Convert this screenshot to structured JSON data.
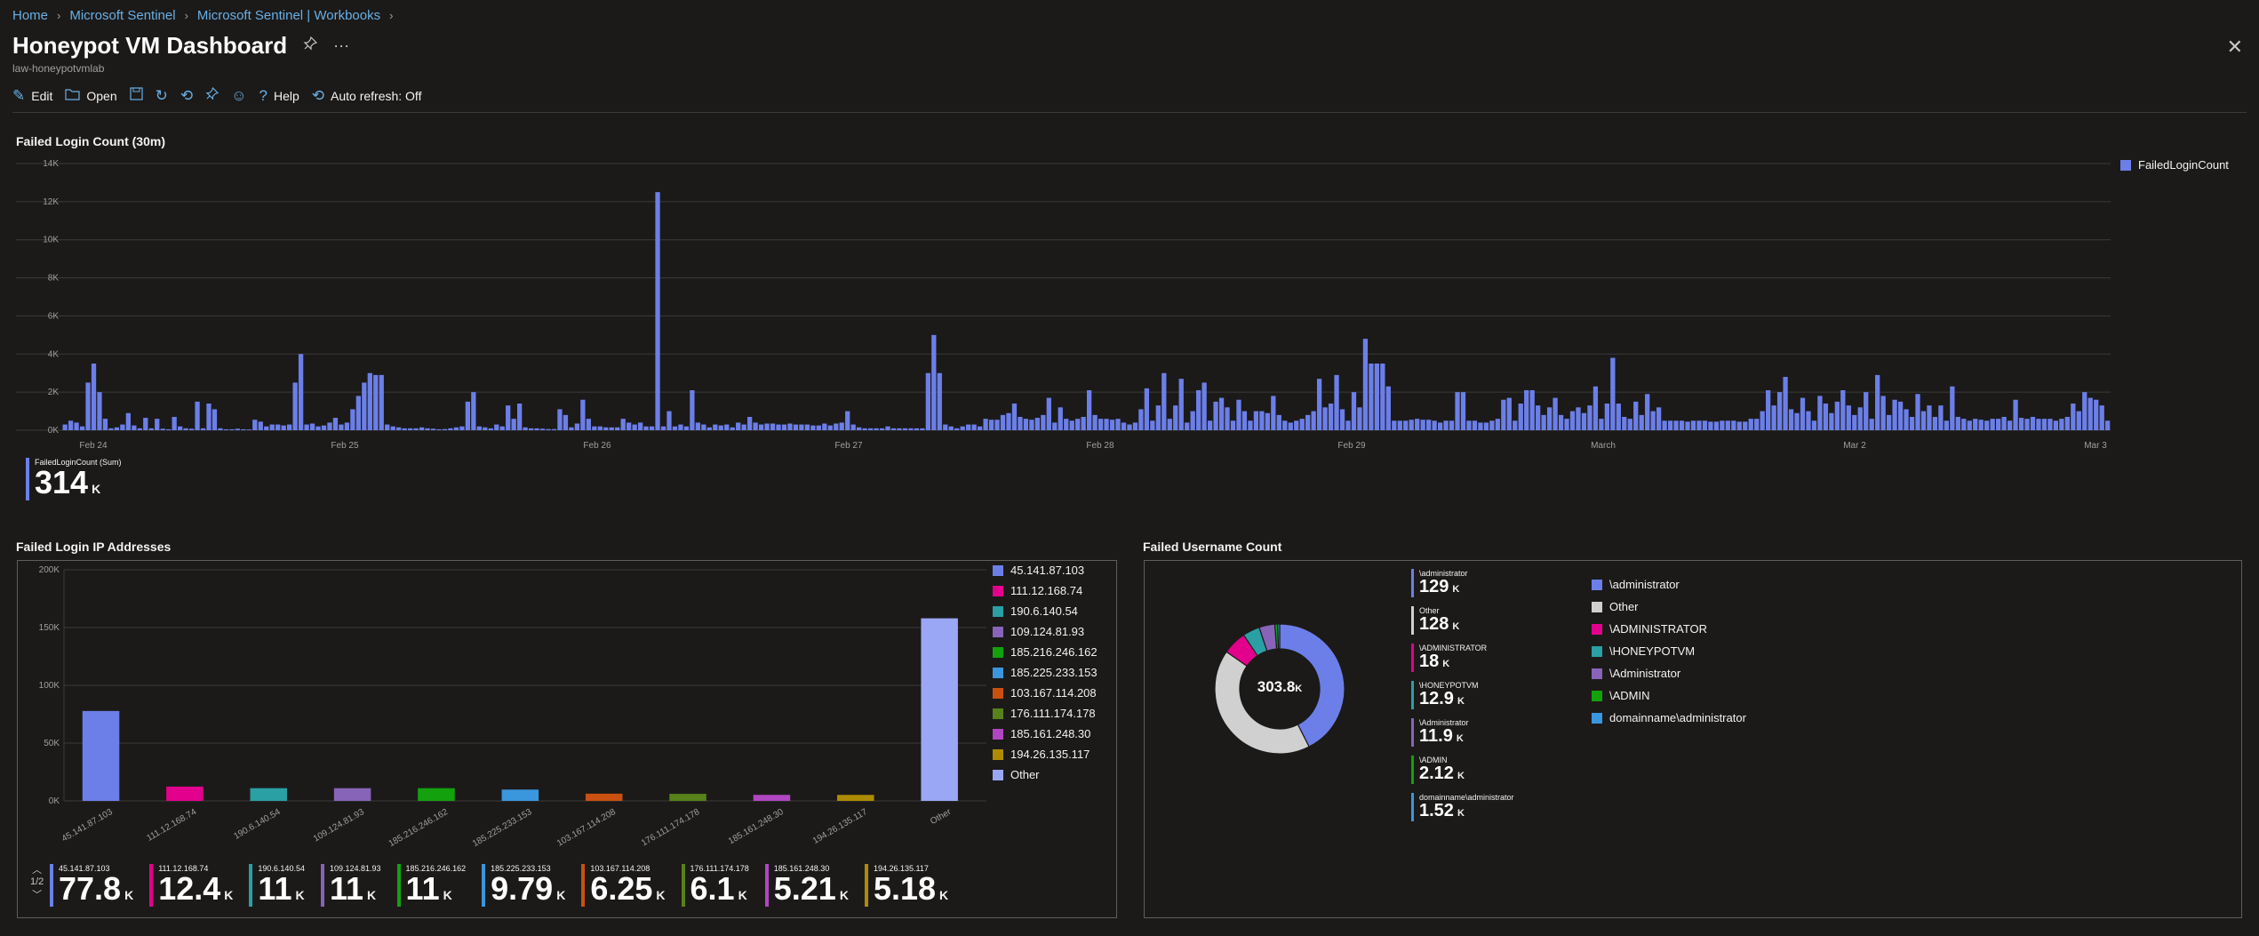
{
  "breadcrumb": {
    "items": [
      "Home",
      "Microsoft Sentinel",
      "Microsoft Sentinel | Workbooks"
    ]
  },
  "page": {
    "title": "Honeypot VM Dashboard",
    "subtitle": "law-honeypotvmlab"
  },
  "toolbar": {
    "edit": "Edit",
    "open": "Open",
    "help": "Help",
    "auto_refresh": "Auto refresh: Off"
  },
  "colors": {
    "primary": "#6c7fe8",
    "other_gray": "#d0d0d0",
    "bg": "#1b1a19",
    "link": "#69afe5"
  },
  "failed_login_count": {
    "title": "Failed Login Count (30m)",
    "legend": "FailedLoginCount",
    "summary_label": "FailedLoginCount (Sum)",
    "summary_value": "314",
    "summary_unit": "K",
    "chart_data": {
      "type": "bar",
      "title": "Failed Login Count (30m)",
      "ylim": [
        0,
        14000
      ],
      "y_ticks": [
        "14K",
        "12K",
        "10K",
        "8K",
        "6K",
        "4K",
        "2K",
        "0K"
      ],
      "x_ticks": [
        "Feb 24",
        "Feb 25",
        "Feb 26",
        "Feb 27",
        "Feb 28",
        "Feb 29",
        "March",
        "Mar 2",
        "Mar 3"
      ],
      "series": [
        {
          "name": "FailedLoginCount",
          "values": [
            300,
            500,
            400,
            200,
            2500,
            3500,
            2000,
            600,
            100,
            150,
            300,
            900,
            250,
            100,
            650,
            100,
            600,
            80,
            50,
            700,
            200,
            100,
            80,
            1500,
            100,
            1400,
            1100,
            100,
            50,
            50,
            80,
            50,
            40,
            550,
            450,
            200,
            300,
            300,
            250,
            300,
            2500,
            4000,
            300,
            350,
            200,
            250,
            400,
            650,
            300,
            400,
            1100,
            1800,
            2500,
            3000,
            2900,
            2900,
            300,
            200,
            150,
            100,
            100,
            100,
            150,
            100,
            80,
            50,
            60,
            100,
            150,
            200,
            1500,
            2000,
            200,
            150,
            100,
            300,
            200,
            1300,
            600,
            1400,
            150,
            100,
            100,
            80,
            60,
            60,
            1100,
            800,
            150,
            350,
            1600,
            600,
            200,
            200,
            150,
            150,
            150,
            600,
            400,
            300,
            400,
            200,
            200,
            12500,
            200,
            1000,
            200,
            300,
            200,
            2100,
            400,
            300,
            150,
            300,
            250,
            300,
            150,
            400,
            300,
            700,
            400,
            300,
            350,
            350,
            300,
            300,
            350,
            300,
            300,
            300,
            250,
            250,
            350,
            250,
            350,
            400,
            1000,
            300,
            150,
            100,
            100,
            100,
            100,
            200,
            100,
            100,
            100,
            100,
            100,
            100,
            3000,
            5000,
            3000,
            300,
            200,
            100,
            200,
            300,
            300,
            200,
            600,
            550,
            550,
            800,
            900,
            1400,
            700,
            600,
            550,
            650,
            800,
            1700,
            400,
            1200,
            600,
            500,
            600,
            700,
            2100,
            800,
            600,
            600,
            550,
            600,
            400,
            300,
            400,
            1100,
            2200,
            500,
            1300,
            3000,
            600,
            1300,
            2700,
            400,
            1000,
            2100,
            2500,
            500,
            1500,
            1700,
            1200,
            500,
            1600,
            1000,
            500,
            1000,
            1000,
            900,
            1800,
            800,
            500,
            400,
            500,
            600,
            800,
            1000,
            2700,
            1200,
            1400,
            2900,
            1100,
            500,
            2000,
            1200,
            4800,
            3500,
            3500,
            3500,
            2300,
            500,
            500,
            500,
            550,
            600,
            550,
            550,
            500,
            400,
            500,
            500,
            2000,
            2000,
            500,
            500,
            400,
            400,
            500,
            600,
            1600,
            1700,
            500,
            1400,
            2100,
            2100,
            1300,
            800,
            1200,
            1700,
            800,
            600,
            1000,
            1200,
            900,
            1300,
            2300,
            600,
            1400,
            3800,
            1400,
            700,
            600,
            1500,
            800,
            1900,
            1000,
            1200,
            500,
            500,
            500,
            500,
            450,
            500,
            500,
            500,
            450,
            450,
            500,
            500,
            500,
            450,
            450,
            600,
            600,
            1000,
            2100,
            1300,
            2000,
            2800,
            1100,
            900,
            1700,
            1000,
            500,
            1800,
            1400,
            900,
            1500,
            2100,
            1300,
            800,
            1200,
            2000,
            600,
            2900,
            1800,
            800,
            1600,
            1500,
            1100,
            700,
            1900,
            1000,
            1300,
            700,
            1300,
            500,
            2300,
            700,
            600,
            500,
            600,
            550,
            500,
            600,
            600,
            700,
            500,
            1600,
            650,
            600,
            700,
            600,
            600,
            600,
            500,
            600,
            700,
            1400,
            1000,
            2000,
            1700,
            1600,
            1300,
            500
          ]
        }
      ]
    }
  },
  "failed_ip": {
    "title": "Failed Login IP Addresses",
    "pagination": "1/2",
    "chart_data": {
      "type": "bar",
      "ylim": [
        0,
        200000
      ],
      "y_ticks": [
        "200K",
        "150K",
        "100K",
        "50K",
        "0K"
      ],
      "categories": [
        "45.141.87.103",
        "111.12.168.74",
        "190.6.140.54",
        "109.124.81.93",
        "185.216.246.162",
        "185.225.233.153",
        "103.167.114.208",
        "176.111.174.178",
        "185.161.248.30",
        "194.26.135.117",
        "Other"
      ],
      "values": [
        77800,
        12400,
        11000,
        11000,
        11000,
        9790,
        6250,
        6100,
        5210,
        5180,
        158000
      ],
      "colors": [
        "#6c7fe8",
        "#e3008c",
        "#2aa0a4",
        "#8764b8",
        "#13a10e",
        "#3a96dd",
        "#ca5010",
        "#57811b",
        "#b146c2",
        "#ae8c00",
        "#9aa7f5"
      ]
    },
    "tiles": [
      {
        "label": "45.141.87.103",
        "value": "77.8",
        "unit": "K"
      },
      {
        "label": "111.12.168.74",
        "value": "12.4",
        "unit": "K"
      },
      {
        "label": "190.6.140.54",
        "value": "11",
        "unit": "K"
      },
      {
        "label": "109.124.81.93",
        "value": "11",
        "unit": "K"
      },
      {
        "label": "185.216.246.162",
        "value": "11",
        "unit": "K"
      },
      {
        "label": "185.225.233.153",
        "value": "9.79",
        "unit": "K"
      },
      {
        "label": "103.167.114.208",
        "value": "6.25",
        "unit": "K"
      },
      {
        "label": "176.111.174.178",
        "value": "6.1",
        "unit": "K"
      },
      {
        "label": "185.161.248.30",
        "value": "5.21",
        "unit": "K"
      },
      {
        "label": "194.26.135.117",
        "value": "5.18",
        "unit": "K"
      }
    ]
  },
  "failed_username": {
    "title": "Failed Username Count",
    "total": "303.8",
    "total_unit": "K",
    "chart_data": {
      "type": "pie",
      "labels": [
        "\\administrator",
        "Other",
        "\\ADMINISTRATOR",
        "\\HONEYPOTVM",
        "\\Administrator",
        "\\ADMIN",
        "domainname\\administrator"
      ],
      "values": [
        129000,
        128000,
        18000,
        12900,
        11900,
        2120,
        1520
      ],
      "colors": [
        "#6c7fe8",
        "#d0d0d0",
        "#e3008c",
        "#2aa0a4",
        "#8764b8",
        "#13a10e",
        "#3a96dd"
      ]
    },
    "tiles": [
      {
        "label": "\\administrator",
        "value": "129",
        "unit": "K"
      },
      {
        "label": "Other",
        "value": "128",
        "unit": "K"
      },
      {
        "label": "\\ADMINISTRATOR",
        "value": "18",
        "unit": "K"
      },
      {
        "label": "\\HONEYPOTVM",
        "value": "12.9",
        "unit": "K"
      },
      {
        "label": "\\Administrator",
        "value": "11.9",
        "unit": "K"
      },
      {
        "label": "\\ADMIN",
        "value": "2.12",
        "unit": "K"
      },
      {
        "label": "domainname\\administrator",
        "value": "1.52",
        "unit": "K"
      }
    ]
  }
}
